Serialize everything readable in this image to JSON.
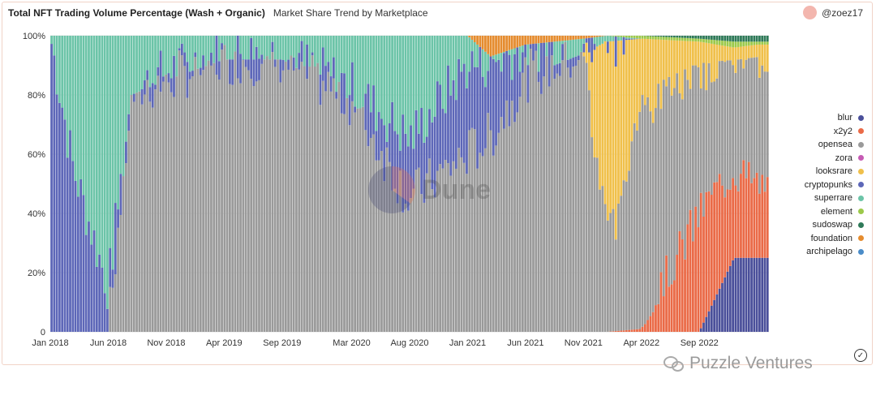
{
  "header": {
    "title": "Total NFT Trading Volume Percentage (Wash + Organic)",
    "subtitle": "Market Share Trend by Marketplace"
  },
  "author": {
    "handle": "@zoez17",
    "avatar_color": "#f3b6ae"
  },
  "watermark": {
    "text": "Dune"
  },
  "footer": {
    "brand": "Puzzle Ventures"
  },
  "icons": {
    "author": "avatar-icon",
    "footer": "wechat-icon",
    "corner": "check-circle-icon"
  },
  "chart_data": {
    "type": "bar",
    "stacked": "percent",
    "title": "Total NFT Trading Volume Percentage (Wash + Organic)",
    "subtitle": "Market Share Trend by Marketplace",
    "x_range": [
      "2018-01",
      "2023-02"
    ],
    "x_ticks": [
      "Jan 2018",
      "Jun 2018",
      "Nov 2018",
      "Apr 2019",
      "Sep 2019",
      "Mar 2020",
      "Aug 2020",
      "Jan 2021",
      "Jun 2021",
      "Nov 2021",
      "Apr 2022",
      "Sep 2022"
    ],
    "y_ticks": [
      "0",
      "20%",
      "40%",
      "60%",
      "80%",
      "100%"
    ],
    "ylim": [
      0,
      100
    ],
    "grid": true,
    "legend_position": "right",
    "series_order": [
      "blur",
      "x2y2",
      "opensea",
      "zora",
      "looksrare",
      "cryptopunks",
      "superrare",
      "element",
      "sudoswap",
      "foundation",
      "archipelago"
    ],
    "series": [
      {
        "name": "blur",
        "color": "#4a4f9a"
      },
      {
        "name": "x2y2",
        "color": "#ea6a47"
      },
      {
        "name": "opensea",
        "color": "#9a9a9a"
      },
      {
        "name": "zora",
        "color": "#c65bb4"
      },
      {
        "name": "looksrare",
        "color": "#f0c04b"
      },
      {
        "name": "cryptopunks",
        "color": "#5d67b8"
      },
      {
        "name": "superrare",
        "color": "#6cc4a8"
      },
      {
        "name": "element",
        "color": "#9cc94a"
      },
      {
        "name": "sudoswap",
        "color": "#2f7a59"
      },
      {
        "name": "foundation",
        "color": "#e58c2f"
      },
      {
        "name": "archipelago",
        "color": "#4a8cc8"
      }
    ],
    "keyframes_percent": {
      "note_unit": "percent share",
      "points": [
        {
          "date": "2018-01",
          "cryptopunks": 100,
          "superrare": 0,
          "opensea": 0
        },
        {
          "date": "2018-03",
          "cryptopunks": 55,
          "superrare": 45,
          "opensea": 0
        },
        {
          "date": "2018-06",
          "cryptopunks": 15,
          "superrare": 85,
          "opensea": 0
        },
        {
          "date": "2018-08",
          "cryptopunks": 0,
          "superrare": 20,
          "opensea": 80
        },
        {
          "date": "2018-11",
          "cryptopunks": 3,
          "superrare": 12,
          "opensea": 85
        },
        {
          "date": "2019-04",
          "cryptopunks": 2,
          "superrare": 6,
          "opensea": 92
        },
        {
          "date": "2019-09",
          "cryptopunks": 2,
          "superrare": 6,
          "opensea": 92
        },
        {
          "date": "2020-03",
          "cryptopunks": 5,
          "superrare": 17,
          "opensea": 78
        },
        {
          "date": "2020-08",
          "cryptopunks": 20,
          "superrare": 35,
          "opensea": 45
        },
        {
          "date": "2021-01",
          "cryptopunks": 30,
          "superrare": 10,
          "opensea": 60
        },
        {
          "date": "2021-03",
          "cryptopunks": 25,
          "superrare": 2,
          "opensea": 66,
          "foundation": 7
        },
        {
          "date": "2021-06",
          "cryptopunks": 10,
          "superrare": 1,
          "opensea": 86,
          "foundation": 3
        },
        {
          "date": "2021-11",
          "cryptopunks": 4,
          "superrare": 1,
          "opensea": 94,
          "foundation": 1
        },
        {
          "date": "2022-01",
          "looksrare": 65,
          "opensea": 33,
          "cryptopunks": 1,
          "superrare": 1
        },
        {
          "date": "2022-04",
          "looksrare": 25,
          "opensea": 73,
          "x2y2": 1,
          "element": 1
        },
        {
          "date": "2022-09",
          "looksrare": 10,
          "opensea": 48,
          "x2y2": 40,
          "element": 1,
          "sudoswap": 1
        },
        {
          "date": "2022-12",
          "looksrare": 6,
          "opensea": 35,
          "x2y2": 30,
          "blur": 25,
          "sudoswap": 2,
          "element": 2
        },
        {
          "date": "2023-02",
          "looksrare": 6,
          "opensea": 42,
          "x2y2": 24,
          "blur": 25,
          "sudoswap": 2,
          "element": 1
        }
      ]
    }
  }
}
